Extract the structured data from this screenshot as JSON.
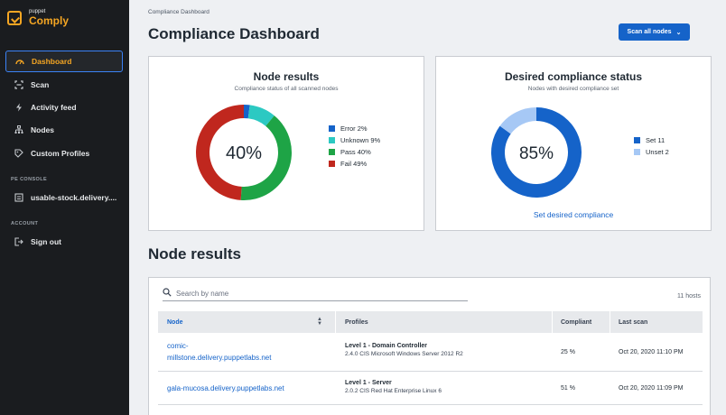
{
  "brand": {
    "small": "puppet",
    "name": "Comply"
  },
  "nav": {
    "items": [
      {
        "label": "Dashboard",
        "icon": "dashboard-icon"
      },
      {
        "label": "Scan",
        "icon": "scan-icon"
      },
      {
        "label": "Activity feed",
        "icon": "activity-icon"
      },
      {
        "label": "Nodes",
        "icon": "nodes-icon"
      },
      {
        "label": "Custom Profiles",
        "icon": "profiles-icon"
      }
    ],
    "pe_console_label": "PE CONSOLE",
    "pe_console_item": "usable-stock.delivery....",
    "account_label": "ACCOUNT",
    "signout": "Sign out"
  },
  "breadcrumb": "Compliance Dashboard",
  "page_title": "Compliance Dashboard",
  "scan_button": "Scan all nodes",
  "node_results_card": {
    "title": "Node results",
    "subtitle": "Compliance status of all scanned nodes",
    "center": "40%",
    "legend": [
      {
        "label": "Error 2%",
        "value": 2,
        "color": "#1563c9"
      },
      {
        "label": "Unknown 9%",
        "value": 9,
        "color": "#2cc9c2"
      },
      {
        "label": "Pass 40%",
        "value": 40,
        "color": "#1ea446"
      },
      {
        "label": "Fail 49%",
        "value": 49,
        "color": "#c0271e"
      }
    ]
  },
  "desired_card": {
    "title": "Desired compliance status",
    "subtitle": "Nodes with desired compliance set",
    "center": "85%",
    "legend": [
      {
        "label": "Set 11",
        "value": 85,
        "color": "#1563c9"
      },
      {
        "label": "Unset 2",
        "value": 15,
        "color": "#a6c8f5"
      }
    ],
    "link": "Set desired compliance"
  },
  "section_title": "Node results",
  "table": {
    "search_placeholder": "Search by name",
    "host_count": "11 hosts",
    "headers": {
      "node": "Node",
      "profiles": "Profiles",
      "compliant": "Compliant",
      "last_scan": "Last scan"
    },
    "rows": [
      {
        "node_line1": "comic-",
        "node_line2": "millstone.delivery.puppetlabs.net",
        "profile": "Level 1 - Domain Controller",
        "profile_detail": "2.4.0 CIS Microsoft Windows Server 2012 R2",
        "compliant": "25 %",
        "last_scan": "Oct 20, 2020 11:10 PM"
      },
      {
        "node_line1": "gala-mucosa.delivery.puppetlabs.net",
        "node_line2": "",
        "profile": "Level 1 - Server",
        "profile_detail": "2.0.2 CIS Red Hat Enterprise Linux 6",
        "compliant": "51 %",
        "last_scan": "Oct 20, 2020 11:09 PM"
      }
    ]
  }
}
